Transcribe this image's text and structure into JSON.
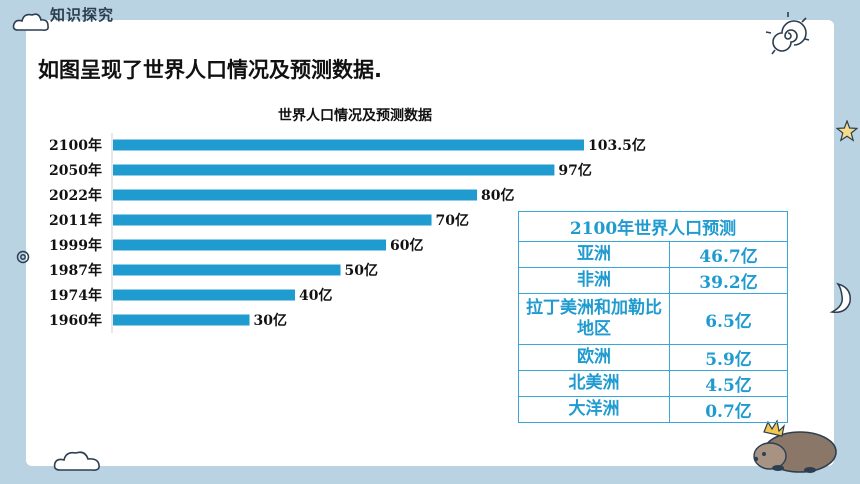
{
  "section_tag": "知识探究",
  "heading": "如图呈现了世界人口情况及预测数据.",
  "chart_data": {
    "type": "bar",
    "orientation": "horizontal",
    "title": "世界人口情况及预测数据",
    "categories": [
      "2100年",
      "2050年",
      "2022年",
      "2011年",
      "1999年",
      "1987年",
      "1974年",
      "1960年"
    ],
    "values": [
      103.5,
      97,
      80,
      70,
      60,
      50,
      40,
      30
    ],
    "value_labels": [
      "103.5亿",
      "97亿",
      "80亿",
      "70亿",
      "60亿",
      "50亿",
      "40亿",
      "30亿"
    ],
    "unit": "亿",
    "xlim": [
      0,
      103.5
    ],
    "bar_color": "#1f9bd0",
    "grid": false
  },
  "prediction_table": {
    "title": "2100年世界人口预测",
    "rows": [
      {
        "region": "亚洲",
        "value": "46.7亿"
      },
      {
        "region": "非洲",
        "value": "39.2亿"
      },
      {
        "region": "拉丁美洲和加勒比地区",
        "value": "6.5亿"
      },
      {
        "region": "欧洲",
        "value": "5.9亿"
      },
      {
        "region": "北美洲",
        "value": "4.5亿"
      },
      {
        "region": "大洋洲",
        "value": "0.7亿"
      }
    ],
    "color": "#1f9bd0"
  },
  "decorations": [
    "cloud-icon",
    "spiral-sun-icon",
    "star-icon",
    "moon-icon",
    "hedgehog-icon"
  ]
}
